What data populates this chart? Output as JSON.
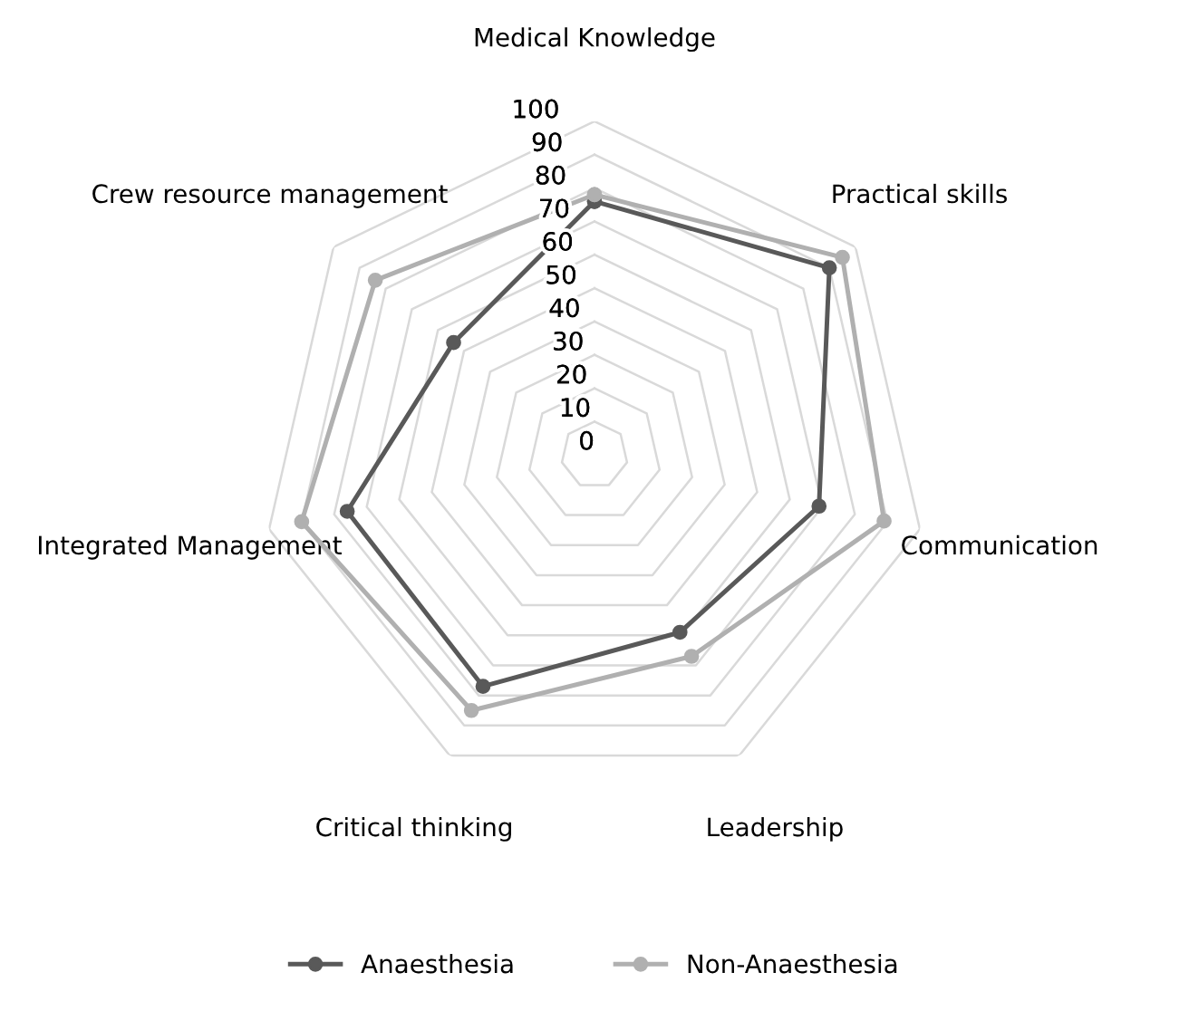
{
  "chart_data": {
    "type": "radar",
    "categories": [
      "Medical Knowledge",
      "Practical skills",
      "Communication",
      "Leadership",
      "Critical thinking",
      "Integrated Management",
      "Crew resource management"
    ],
    "series": [
      {
        "name": "Anaesthesia",
        "color": "#595959",
        "values": [
          76,
          90,
          69,
          59,
          77,
          76,
          54
        ]
      },
      {
        "name": "Non-Anaesthesia",
        "color": "#b0b0b0",
        "values": [
          78,
          95,
          89,
          67,
          85,
          90,
          84
        ]
      }
    ],
    "ylim": [
      0,
      100
    ],
    "yticks": [
      0,
      10,
      20,
      30,
      40,
      50,
      60,
      70,
      80,
      90,
      100
    ],
    "grid": true,
    "legend": "bottom",
    "marker": "circle",
    "line_style": "solid"
  }
}
